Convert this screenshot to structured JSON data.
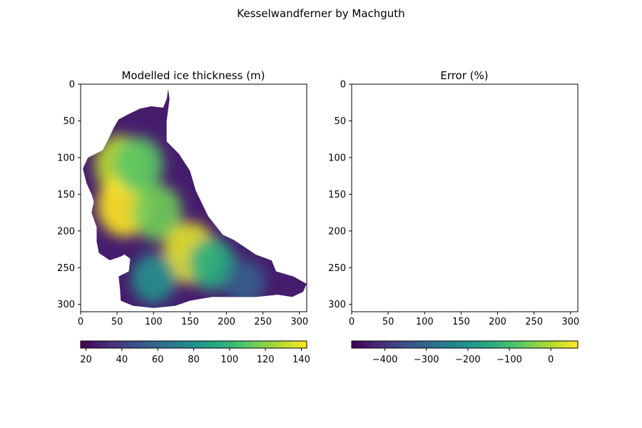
{
  "figure": {
    "suptitle": "Kesselwandferner by Machguth"
  },
  "chart_data": [
    {
      "type": "heatmap",
      "title": "Modelled ice thickness (m)",
      "xlim": [
        0,
        310
      ],
      "ylim": [
        310,
        0
      ],
      "x_ticks": [
        0,
        50,
        100,
        150,
        200,
        250,
        300
      ],
      "y_ticks": [
        0,
        50,
        100,
        150,
        200,
        250,
        300
      ],
      "colormap": "viridis",
      "colorbar": {
        "range": [
          17,
          143
        ],
        "ticks": [
          20,
          40,
          60,
          80,
          100,
          120,
          140
        ],
        "orientation": "horizontal"
      },
      "glacier_outline": [
        [
          120,
          6
        ],
        [
          118,
          20
        ],
        [
          113,
          32
        ],
        [
          97,
          30
        ],
        [
          82,
          33
        ],
        [
          67,
          40
        ],
        [
          52,
          48
        ],
        [
          45,
          60
        ],
        [
          38,
          75
        ],
        [
          30,
          90
        ],
        [
          20,
          95
        ],
        [
          10,
          100
        ],
        [
          3,
          115
        ],
        [
          8,
          135
        ],
        [
          15,
          150
        ],
        [
          18,
          160
        ],
        [
          15,
          175
        ],
        [
          22,
          195
        ],
        [
          22,
          215
        ],
        [
          25,
          230
        ],
        [
          40,
          240
        ],
        [
          55,
          235
        ],
        [
          60,
          232
        ],
        [
          68,
          238
        ],
        [
          66,
          255
        ],
        [
          52,
          262
        ],
        [
          54,
          280
        ],
        [
          55,
          295
        ],
        [
          72,
          302
        ],
        [
          100,
          305
        ],
        [
          130,
          302
        ],
        [
          150,
          295
        ],
        [
          180,
          290
        ],
        [
          210,
          290
        ],
        [
          240,
          290
        ],
        [
          270,
          287
        ],
        [
          290,
          290
        ],
        [
          305,
          283
        ],
        [
          310,
          272
        ],
        [
          292,
          262
        ],
        [
          268,
          255
        ],
        [
          262,
          240
        ],
        [
          240,
          232
        ],
        [
          225,
          222
        ],
        [
          210,
          212
        ],
        [
          195,
          205
        ],
        [
          175,
          180
        ],
        [
          158,
          145
        ],
        [
          150,
          118
        ],
        [
          135,
          95
        ],
        [
          118,
          78
        ],
        [
          118,
          50
        ],
        [
          122,
          20
        ]
      ],
      "thickness_features": [
        {
          "x": 55,
          "y": 110,
          "value": 130
        },
        {
          "x": 60,
          "y": 165,
          "value": 143
        },
        {
          "x": 80,
          "y": 110,
          "value": 110
        },
        {
          "x": 105,
          "y": 175,
          "value": 115
        },
        {
          "x": 150,
          "y": 230,
          "value": 138
        },
        {
          "x": 180,
          "y": 245,
          "value": 95
        },
        {
          "x": 100,
          "y": 265,
          "value": 80
        },
        {
          "x": 225,
          "y": 270,
          "value": 55
        }
      ]
    },
    {
      "type": "heatmap",
      "title": "Error (%)",
      "xlim": [
        0,
        310
      ],
      "ylim": [
        310,
        0
      ],
      "x_ticks": [
        0,
        50,
        100,
        150,
        200,
        250,
        300
      ],
      "y_ticks": [
        0,
        50,
        100,
        150,
        200,
        250,
        300
      ],
      "colormap": "viridis",
      "colorbar": {
        "range": [
          -480,
          65
        ],
        "ticks": [
          -400,
          -300,
          -200,
          -100,
          0
        ],
        "orientation": "horizontal"
      },
      "values": []
    }
  ]
}
